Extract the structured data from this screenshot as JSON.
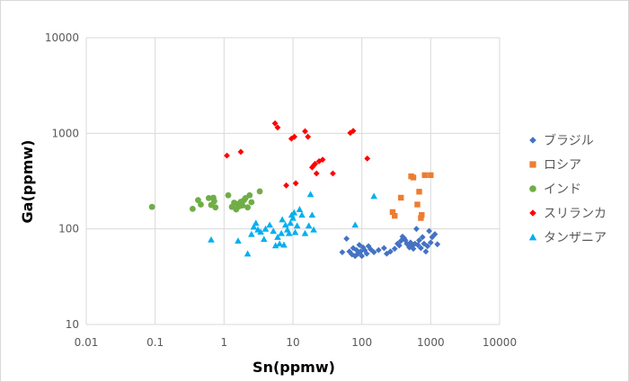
{
  "chart_data": {
    "type": "scatter",
    "title": "",
    "xlabel": "Sn(ppmw)",
    "ylabel": "Ga(ppmw)",
    "x_scale": "log",
    "y_scale": "log",
    "xlim": [
      0.01,
      10000
    ],
    "ylim": [
      10,
      10000
    ],
    "x_ticks": [
      "0.01",
      "0.1",
      "1",
      "10",
      "100",
      "1000",
      "10000"
    ],
    "y_ticks": [
      "10",
      "100",
      "1000",
      "10000"
    ],
    "grid": true,
    "legend_position": "right",
    "series": [
      {
        "name": "ブラジル",
        "marker": "diamond",
        "color": "#4472c4",
        "points": [
          [
            52,
            57
          ],
          [
            60,
            79
          ],
          [
            66,
            58
          ],
          [
            72,
            54
          ],
          [
            75,
            63
          ],
          [
            80,
            52
          ],
          [
            84,
            60
          ],
          [
            88,
            55
          ],
          [
            92,
            68
          ],
          [
            96,
            58
          ],
          [
            100,
            52
          ],
          [
            104,
            64
          ],
          [
            110,
            60
          ],
          [
            118,
            55
          ],
          [
            125,
            66
          ],
          [
            135,
            61
          ],
          [
            150,
            57
          ],
          [
            175,
            60
          ],
          [
            210,
            63
          ],
          [
            230,
            55
          ],
          [
            260,
            58
          ],
          [
            300,
            62
          ],
          [
            330,
            70
          ],
          [
            350,
            67
          ],
          [
            370,
            75
          ],
          [
            390,
            83
          ],
          [
            410,
            80
          ],
          [
            430,
            76
          ],
          [
            450,
            70
          ],
          [
            470,
            68
          ],
          [
            490,
            64
          ],
          [
            510,
            72
          ],
          [
            530,
            66
          ],
          [
            560,
            62
          ],
          [
            590,
            70
          ],
          [
            620,
            100
          ],
          [
            650,
            68
          ],
          [
            680,
            76
          ],
          [
            720,
            63
          ],
          [
            760,
            82
          ],
          [
            800,
            70
          ],
          [
            850,
            58
          ],
          [
            900,
            66
          ],
          [
            950,
            95
          ],
          [
            1000,
            72
          ],
          [
            1050,
            82
          ],
          [
            1150,
            88
          ],
          [
            1250,
            69
          ]
        ]
      },
      {
        "name": "ロシア",
        "marker": "square",
        "color": "#ed7d31",
        "points": [
          [
            280,
            150
          ],
          [
            300,
            137
          ],
          [
            370,
            212
          ],
          [
            520,
            355
          ],
          [
            560,
            345
          ],
          [
            640,
            180
          ],
          [
            680,
            245
          ],
          [
            720,
            130
          ],
          [
            740,
            140
          ],
          [
            820,
            365
          ],
          [
            1000,
            365
          ]
        ]
      },
      {
        "name": "インド",
        "marker": "circle",
        "color": "#70ad47",
        "points": [
          [
            0.09,
            170
          ],
          [
            0.35,
            162
          ],
          [
            0.42,
            200
          ],
          [
            0.46,
            180
          ],
          [
            0.6,
            210
          ],
          [
            0.65,
            178
          ],
          [
            0.7,
            212
          ],
          [
            0.72,
            195
          ],
          [
            0.75,
            168
          ],
          [
            1.15,
            225
          ],
          [
            1.3,
            170
          ],
          [
            1.4,
            188
          ],
          [
            1.5,
            160
          ],
          [
            1.55,
            182
          ],
          [
            1.65,
            172
          ],
          [
            1.75,
            192
          ],
          [
            1.85,
            176
          ],
          [
            1.95,
            200
          ],
          [
            2.05,
            210
          ],
          [
            2.2,
            168
          ],
          [
            2.35,
            225
          ],
          [
            2.5,
            190
          ],
          [
            3.3,
            247
          ]
        ]
      },
      {
        "name": "スリランカ",
        "marker": "diamond",
        "color": "#ff0000",
        "points": [
          [
            1.1,
            585
          ],
          [
            1.75,
            640
          ],
          [
            5.5,
            1270
          ],
          [
            6,
            1150
          ],
          [
            8,
            285
          ],
          [
            9.5,
            880
          ],
          [
            10.5,
            920
          ],
          [
            11,
            300
          ],
          [
            15,
            1050
          ],
          [
            16.5,
            920
          ],
          [
            19,
            440
          ],
          [
            20,
            460
          ],
          [
            21,
            480
          ],
          [
            22,
            380
          ],
          [
            24,
            510
          ],
          [
            27,
            530
          ],
          [
            38,
            380
          ],
          [
            68,
            1010
          ],
          [
            75,
            1060
          ],
          [
            120,
            545
          ]
        ]
      },
      {
        "name": "タンザニア",
        "marker": "triangle",
        "color": "#00b0f0",
        "points": [
          [
            0.65,
            77
          ],
          [
            1.6,
            75
          ],
          [
            2.2,
            55
          ],
          [
            2.5,
            88
          ],
          [
            2.7,
            105
          ],
          [
            2.9,
            115
          ],
          [
            3.1,
            98
          ],
          [
            3.4,
            93
          ],
          [
            3.8,
            78
          ],
          [
            4,
            100
          ],
          [
            4.6,
            110
          ],
          [
            5.2,
            95
          ],
          [
            5.6,
            67
          ],
          [
            6,
            82
          ],
          [
            6.4,
            70
          ],
          [
            6.8,
            90
          ],
          [
            7,
            125
          ],
          [
            7.4,
            68
          ],
          [
            7.8,
            110
          ],
          [
            8.3,
            98
          ],
          [
            8.8,
            90
          ],
          [
            9.2,
            115
          ],
          [
            9.6,
            140
          ],
          [
            10,
            130
          ],
          [
            10.4,
            148
          ],
          [
            10.8,
            92
          ],
          [
            11.5,
            108
          ],
          [
            12.5,
            160
          ],
          [
            13.5,
            140
          ],
          [
            15,
            90
          ],
          [
            17,
            108
          ],
          [
            18,
            230
          ],
          [
            19,
            140
          ],
          [
            20,
            98
          ],
          [
            80,
            110
          ],
          [
            150,
            220
          ]
        ]
      }
    ]
  }
}
